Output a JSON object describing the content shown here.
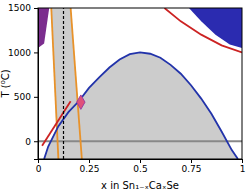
{
  "chart_data": {
    "type": "line",
    "x_label": "x in Sn₁₋ₓCaₓSe",
    "y_label": "T (⁰C)",
    "xlim": [
      0,
      1
    ],
    "ylim": [
      -200,
      1500
    ],
    "xticks": [
      0,
      0.25,
      0.5,
      0.75,
      1
    ],
    "yticks": [
      0,
      500,
      1000,
      1500
    ],
    "grid": false,
    "series": [
      {
        "type": "area",
        "color": "#cccccc",
        "x": [
          0.03,
          0.05,
          0.09,
          0.065,
          0.16,
          0.194,
          0.25,
          0.3,
          0.35,
          0.4,
          0.45,
          0.5,
          0.55,
          0.6,
          0.65,
          0.7,
          0.75,
          0.8,
          0.85,
          0.9,
          0.95,
          0.98
        ],
        "values": [
          -200,
          -60,
          135,
          1500,
          1500,
          440,
          600,
          720,
          830,
          920,
          980,
          1000,
          985,
          940,
          860,
          760,
          630,
          480,
          310,
          110,
          -100,
          -200
        ]
      },
      {
        "type": "area",
        "color": "#7b2d8e",
        "x": [
          0,
          0.03,
          0.055,
          0
        ],
        "values": [
          1050,
          1100,
          1500,
          1500
        ]
      },
      {
        "type": "area",
        "color": "#2b2bb0",
        "x": [
          0.74,
          0.8,
          0.87,
          0.94,
          1,
          1
        ],
        "values": [
          1500,
          1350,
          1200,
          1090,
          1050,
          1500
        ]
      },
      {
        "type": "line",
        "color": "#888888",
        "line_style": "solid",
        "x": [
          0,
          1
        ],
        "values": [
          0,
          0
        ]
      },
      {
        "type": "line",
        "color": "#e8922a",
        "line_style": "solid",
        "x": [
          0.065,
          0.1
        ],
        "values": [
          1500,
          -200
        ]
      },
      {
        "type": "line",
        "color": "#e8922a",
        "line_style": "solid",
        "x": [
          0.16,
          0.215
        ],
        "values": [
          1500,
          -200
        ]
      },
      {
        "type": "line",
        "color": "#2233aa",
        "line_style": "solid",
        "x": [
          0.03,
          0.05,
          0.1,
          0.15,
          0.2,
          0.25,
          0.3,
          0.35,
          0.4,
          0.45,
          0.5,
          0.55,
          0.6,
          0.65,
          0.7,
          0.75,
          0.8,
          0.85,
          0.9,
          0.95,
          0.98
        ],
        "values": [
          -200,
          -60,
          170,
          330,
          450,
          600,
          720,
          830,
          920,
          980,
          1000,
          985,
          940,
          860,
          760,
          630,
          480,
          310,
          110,
          -100,
          -200
        ]
      },
      {
        "type": "line",
        "color": "#cc2222",
        "line_style": "solid",
        "x": [
          0.62,
          0.7,
          0.8,
          0.9,
          1
        ],
        "values": [
          1500,
          1350,
          1200,
          1080,
          1000
        ]
      },
      {
        "type": "line",
        "color": "#cc2222",
        "line_style": "solid",
        "x": [
          0.02,
          0.16
        ],
        "values": [
          -50,
          450
        ]
      },
      {
        "type": "line",
        "color": "#000000",
        "line_style": "dashed",
        "x": [
          0.125,
          0.125
        ],
        "values": [
          -200,
          1500
        ]
      },
      {
        "type": "scatter",
        "color": "#e0507a",
        "marker": "diamond",
        "x": [
          0.21
        ],
        "values": [
          440
        ]
      }
    ]
  }
}
